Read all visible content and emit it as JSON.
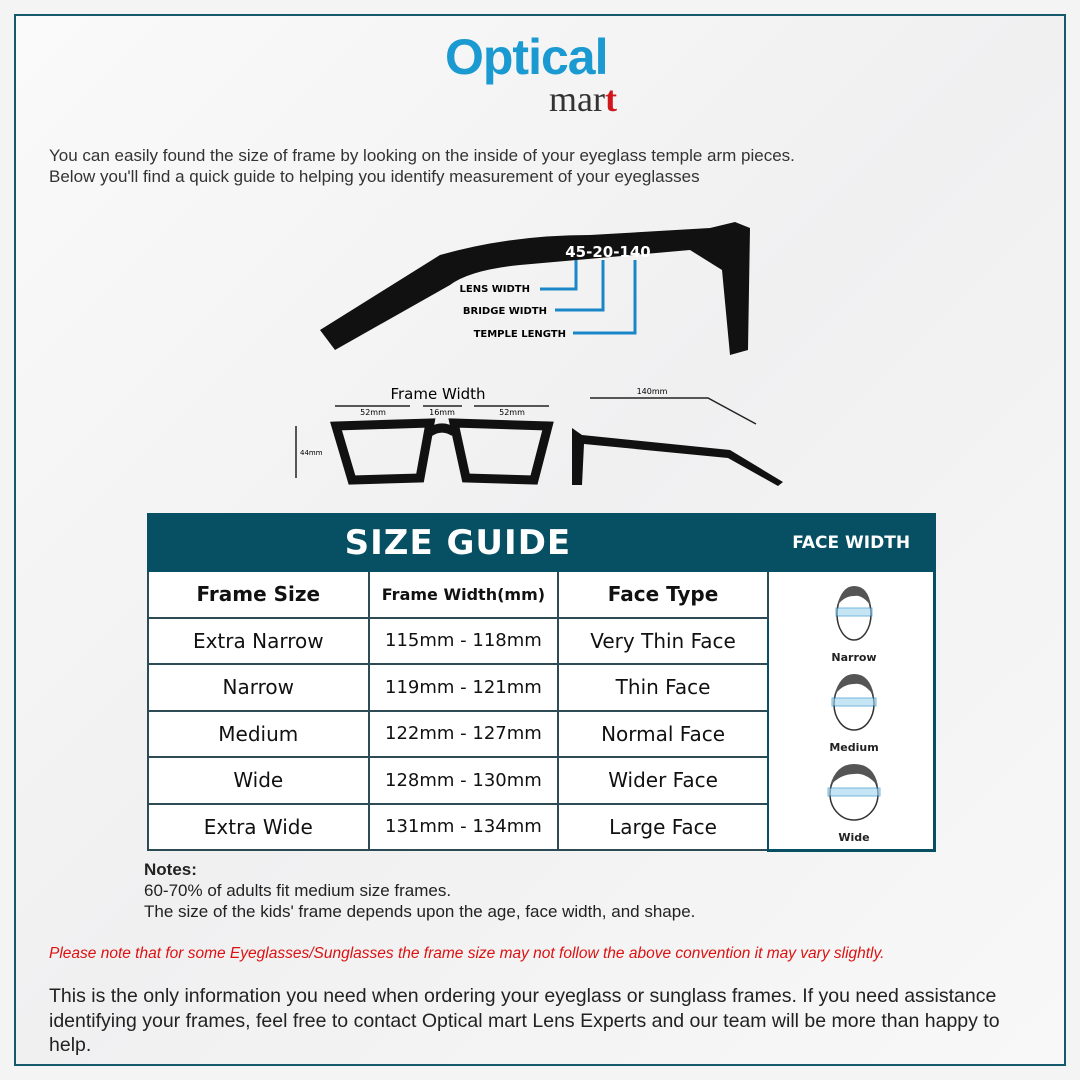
{
  "brand": {
    "name_top": "Optical",
    "name_bottom_main": "mar",
    "name_bottom_accent": "t",
    "accent_color": "#d1161b",
    "brand_color": "#1a9ad0"
  },
  "intro": {
    "line1": "You can easily found the size of frame by looking on the inside of your eyeglass temple arm pieces.",
    "line2": "Below you'll find a quick guide to helping you identify measurement of your eyeglasses"
  },
  "temple_diagram": {
    "code": "45-20-140",
    "labels": [
      "LENS WIDTH",
      "BRIDGE WIDTH",
      "TEMPLE LENGTH"
    ]
  },
  "front_diagram": {
    "title": "Frame Width",
    "lens": "52mm",
    "bridge": "16mm",
    "lens2": "52mm",
    "height": "44mm",
    "temple": "140mm"
  },
  "size_guide": {
    "title": "SIZE GUIDE",
    "face_width_title": "FACE WIDTH",
    "header_color": "#075063",
    "columns": [
      "Frame Size",
      "Frame Width(mm)",
      "Face Type"
    ],
    "rows": [
      [
        "Extra Narrow",
        "115mm - 118mm",
        "Very Thin Face"
      ],
      [
        "Narrow",
        "119mm - 121mm",
        "Thin Face"
      ],
      [
        "Medium",
        "122mm - 127mm",
        "Normal Face"
      ],
      [
        "Wide",
        "128mm - 130mm",
        "Wider Face"
      ],
      [
        "Extra Wide",
        "131mm - 134mm",
        "Large Face"
      ]
    ],
    "faces": [
      "Narrow",
      "Medium",
      "Wide"
    ]
  },
  "notes": {
    "title": "Notes:",
    "line1": "60-70% of adults fit medium size frames.",
    "line2": "The size of the kids' frame depends upon the age, face width, and shape."
  },
  "disclaimer": "Please note that for some Eyeglasses/Sunglasses the frame size may not follow the above convention it may vary slightly.",
  "closing": "This is the only information you need when ordering your eyeglass or sunglass frames. If you need assistance identifying your frames, feel free to contact Optical mart Lens Experts and our team will be more than happy to help."
}
